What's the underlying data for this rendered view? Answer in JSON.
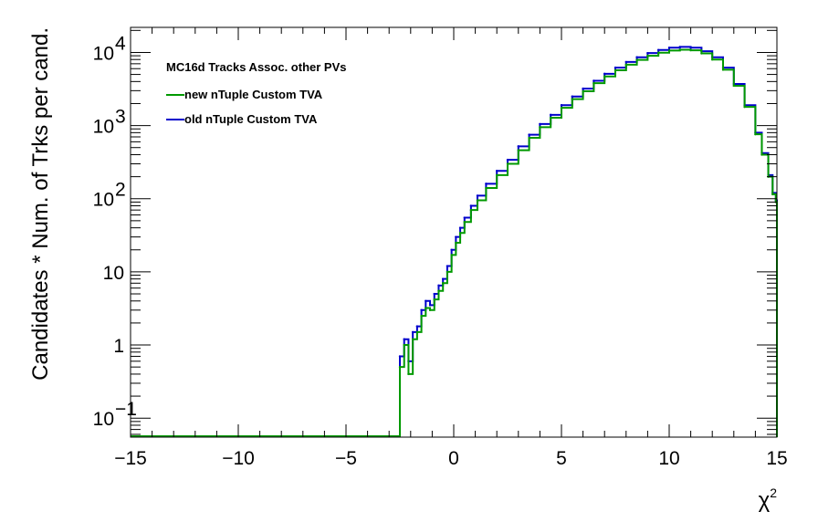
{
  "chart_data": {
    "type": "line",
    "xlabel": "χ",
    "xlabel_sup": "2",
    "ylabel": "Candidates * Num. of Trks per cand.",
    "xlim": [
      -15,
      15
    ],
    "ylim": [
      0.055,
      22000
    ],
    "y_scale": "log",
    "grid": false,
    "legend": {
      "title": "MC16d Tracks Assoc. other PVs",
      "placement": "top-left"
    },
    "x_ticks": [
      {
        "value": -15,
        "label": "−15"
      },
      {
        "value": -10,
        "label": "−10"
      },
      {
        "value": -5,
        "label": "−5"
      },
      {
        "value": 0,
        "label": "0"
      },
      {
        "value": 5,
        "label": "5"
      },
      {
        "value": 10,
        "label": "10"
      },
      {
        "value": 15,
        "label": "15"
      }
    ],
    "y_ticks": [
      {
        "value": 0.1,
        "base": "10",
        "exp": "−1"
      },
      {
        "value": 1,
        "base": "1",
        "exp": ""
      },
      {
        "value": 10,
        "base": "10",
        "exp": ""
      },
      {
        "value": 100,
        "base": "10",
        "exp": "2"
      },
      {
        "value": 1000,
        "base": "10",
        "exp": "3"
      },
      {
        "value": 10000,
        "base": "10",
        "exp": "4"
      }
    ],
    "series": [
      {
        "name": "old nTuple Custom TVA",
        "color": "#0000cc",
        "x": [
          -2.5,
          -2.3,
          -2.1,
          -1.9,
          -1.7,
          -1.5,
          -1.3,
          -1.1,
          -0.9,
          -0.7,
          -0.5,
          -0.3,
          -0.1,
          0.1,
          0.3,
          0.5,
          0.8,
          1.1,
          1.5,
          2.0,
          2.5,
          3.0,
          3.5,
          4.0,
          4.5,
          5.0,
          5.5,
          6.0,
          6.5,
          7.0,
          7.5,
          8.0,
          8.5,
          9.0,
          9.5,
          10.0,
          10.5,
          11.0,
          11.5,
          12.0,
          12.5,
          13.0,
          13.5,
          14.0,
          14.3,
          14.6,
          14.8,
          14.95
        ],
        "y": [
          0.7,
          1.2,
          0.6,
          1.5,
          1.8,
          3.0,
          4.0,
          3.5,
          5.0,
          6.5,
          8.0,
          12.0,
          20.0,
          30.0,
          40.0,
          55.0,
          80.0,
          110.0,
          160.0,
          240.0,
          340.0,
          520.0,
          750.0,
          1050.0,
          1400.0,
          1900.0,
          2500.0,
          3200.0,
          4100.0,
          5100.0,
          6200.0,
          7400.0,
          8600.0,
          9800.0,
          10800.0,
          11600.0,
          11900.0,
          11600.0,
          10400.0,
          8600.0,
          6200.0,
          3700.0,
          1900.0,
          800.0,
          420.0,
          210.0,
          120.0,
          95.0
        ]
      },
      {
        "name": "new nTuple Custom TVA",
        "color": "#009900",
        "x": [
          -2.5,
          -2.3,
          -2.1,
          -1.9,
          -1.7,
          -1.5,
          -1.3,
          -1.1,
          -0.9,
          -0.7,
          -0.5,
          -0.3,
          -0.1,
          0.1,
          0.3,
          0.5,
          0.8,
          1.1,
          1.5,
          2.0,
          2.5,
          3.0,
          3.5,
          4.0,
          4.5,
          5.0,
          5.5,
          6.0,
          6.5,
          7.0,
          7.5,
          8.0,
          8.5,
          9.0,
          9.5,
          10.0,
          10.5,
          11.0,
          11.5,
          12.0,
          12.5,
          13.0,
          13.5,
          14.0,
          14.3,
          14.6,
          14.8,
          14.95
        ],
        "y": [
          0.5,
          1.0,
          0.4,
          1.2,
          1.5,
          2.5,
          3.2,
          3.0,
          4.2,
          5.5,
          7.0,
          10.0,
          17.0,
          25.0,
          34.0,
          48.0,
          70.0,
          95.0,
          140.0,
          210.0,
          300.0,
          460.0,
          680.0,
          950.0,
          1280.0,
          1750.0,
          2300.0,
          2950.0,
          3800.0,
          4700.0,
          5700.0,
          6800.0,
          7900.0,
          9000.0,
          9900.0,
          10600.0,
          10900.0,
          10700.0,
          9700.0,
          8000.0,
          5800.0,
          3500.0,
          1800.0,
          760.0,
          400.0,
          200.0,
          115.0,
          90.0
        ]
      }
    ]
  }
}
